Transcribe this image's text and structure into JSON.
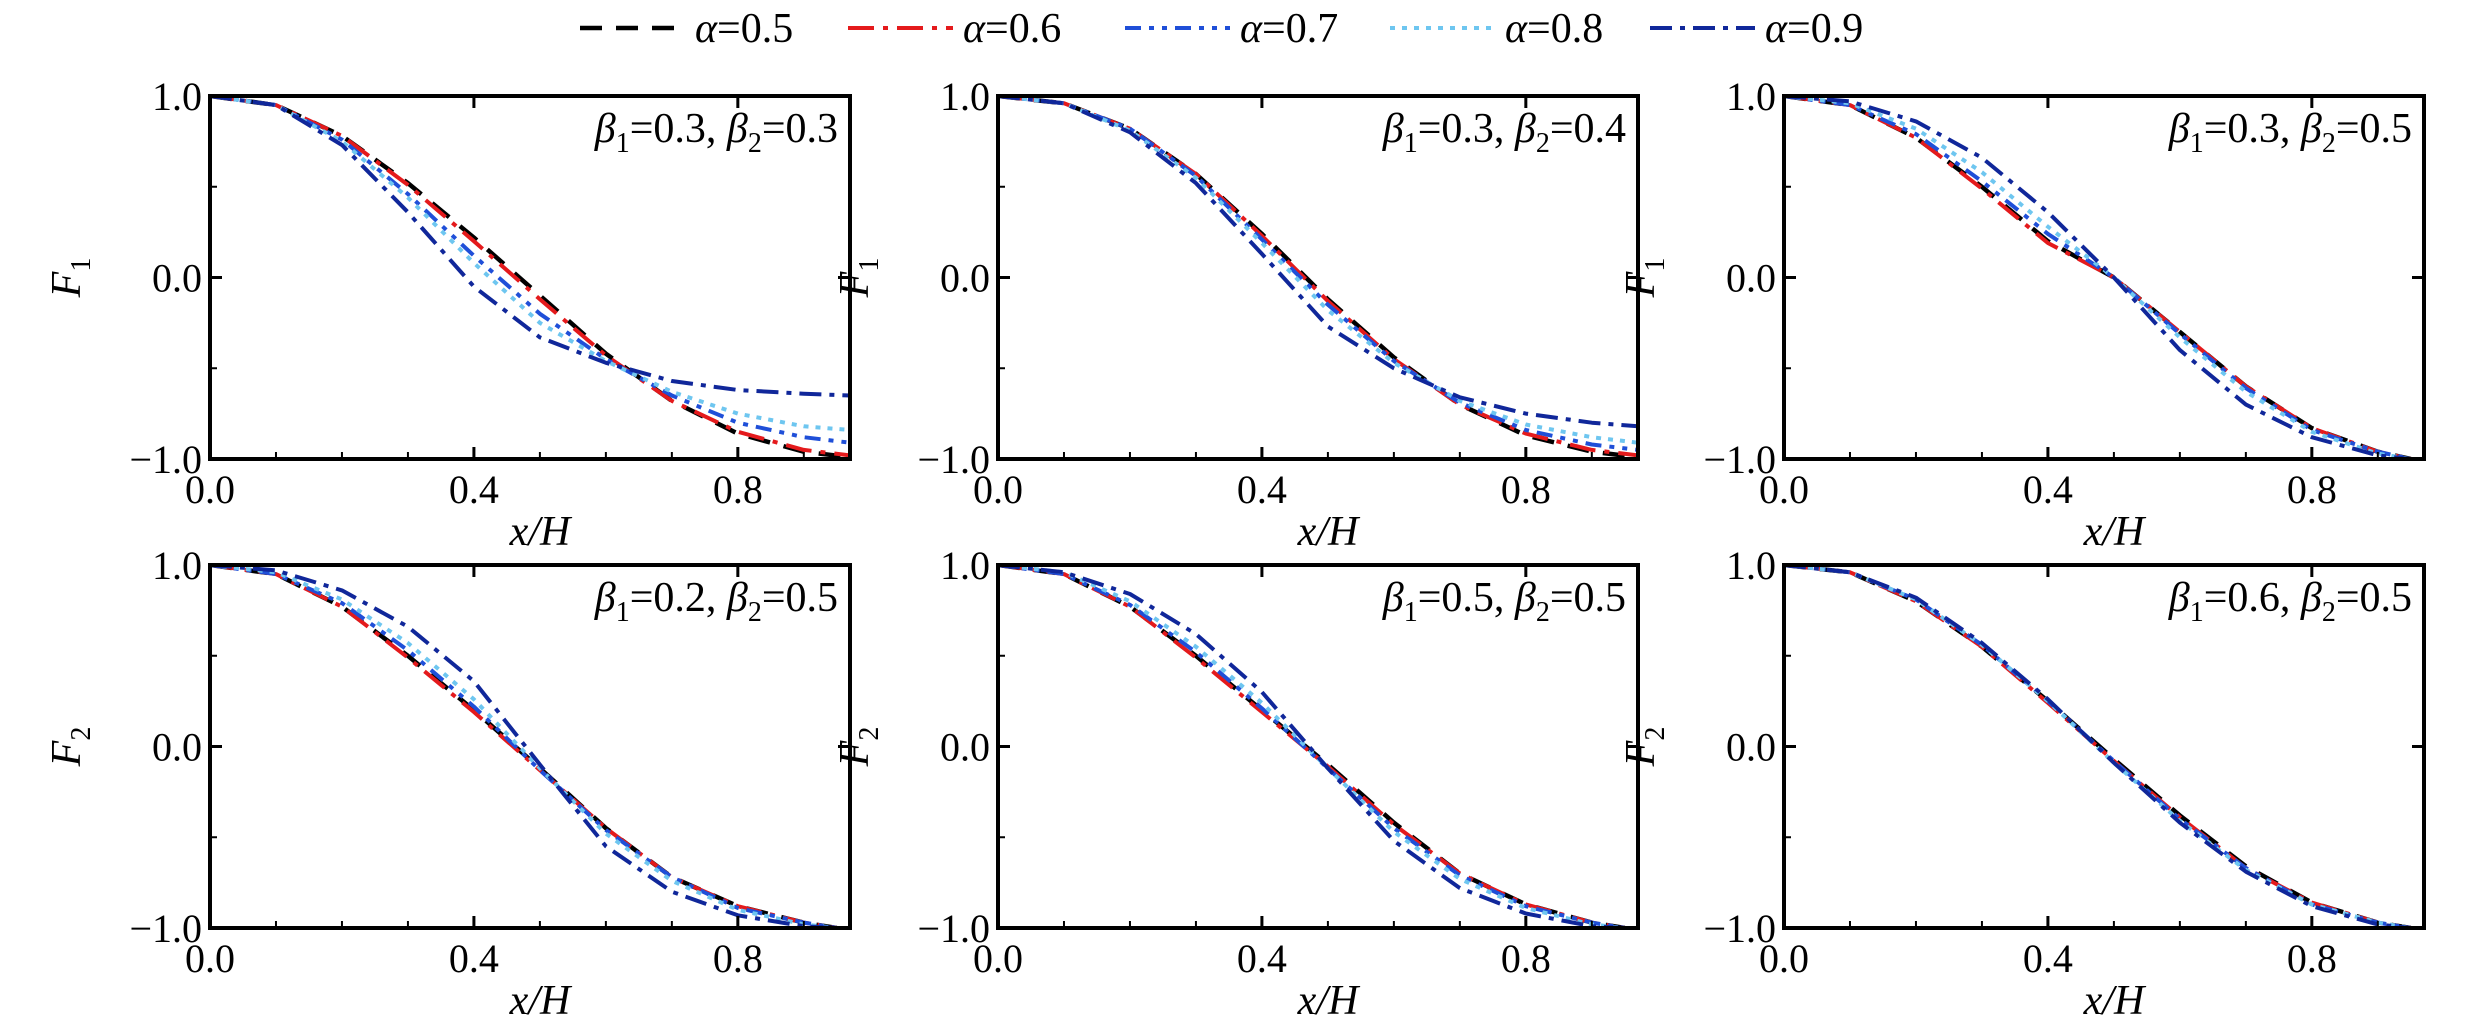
{
  "figure": {
    "legend_alpha_symbol": "α"
  },
  "styles": {
    "0.5": {
      "color": "#000000",
      "dash": "22,14",
      "width": 4.5
    },
    "0.6": {
      "color": "#e41a1c",
      "dash": "26,9,5,9",
      "width": 4
    },
    "0.7": {
      "color": "#1f4fd8",
      "dash": "16,8,5,8,5,8",
      "width": 4
    },
    "0.8": {
      "color": "#6ec6f0",
      "dash": "5,7",
      "width": 4
    },
    "0.9": {
      "color": "#10279a",
      "dash": "22,8,5,8",
      "width": 4
    }
  },
  "chart_data": [
    {
      "type": "line",
      "ylabel": "F",
      "ylabel_sub": "1",
      "xlabel": "x/H",
      "annotation": {
        "b1": "0.3",
        "b2": "0.3"
      },
      "xlim": [
        0,
        0.97
      ],
      "ylim": [
        -1.0,
        1.0
      ],
      "xticks": [
        0.0,
        0.4,
        0.8
      ],
      "xtick_labels": [
        "0.0",
        "0.4",
        "0.8"
      ],
      "yticks": [
        1.0,
        0.0,
        -1.0
      ],
      "ytick_labels": [
        "1.0",
        "0.0",
        "−1.0"
      ],
      "x": [
        0.0,
        0.1,
        0.2,
        0.3,
        0.4,
        0.5,
        0.6,
        0.7,
        0.8,
        0.9,
        0.97
      ],
      "series": [
        {
          "name": "α=0.5",
          "alpha": "0.5",
          "values": [
            1.0,
            0.95,
            0.78,
            0.52,
            0.22,
            -0.1,
            -0.42,
            -0.68,
            -0.86,
            -0.96,
            -0.99
          ]
        },
        {
          "name": "α=0.6",
          "alpha": "0.6",
          "values": [
            1.0,
            0.95,
            0.78,
            0.51,
            0.2,
            -0.12,
            -0.43,
            -0.68,
            -0.85,
            -0.95,
            -0.98
          ]
        },
        {
          "name": "α=0.7",
          "alpha": "0.7",
          "values": [
            1.0,
            0.95,
            0.76,
            0.46,
            0.12,
            -0.2,
            -0.45,
            -0.65,
            -0.8,
            -0.88,
            -0.91
          ]
        },
        {
          "name": "α=0.8",
          "alpha": "0.8",
          "values": [
            1.0,
            0.95,
            0.75,
            0.44,
            0.08,
            -0.25,
            -0.46,
            -0.63,
            -0.75,
            -0.82,
            -0.84
          ]
        },
        {
          "name": "α=0.9",
          "alpha": "0.9",
          "values": [
            1.0,
            0.95,
            0.73,
            0.36,
            -0.05,
            -0.33,
            -0.47,
            -0.57,
            -0.62,
            -0.64,
            -0.65
          ]
        }
      ]
    },
    {
      "type": "line",
      "ylabel": "F",
      "ylabel_sub": "1",
      "xlabel": "x/H",
      "annotation": {
        "b1": "0.3",
        "b2": "0.4"
      },
      "xlim": [
        0,
        0.97
      ],
      "ylim": [
        -1.0,
        1.0
      ],
      "xticks": [
        0.0,
        0.4,
        0.8
      ],
      "xtick_labels": [
        "0.0",
        "0.4",
        "0.8"
      ],
      "yticks": [
        1.0,
        0.0,
        -1.0
      ],
      "ytick_labels": [
        "1.0",
        "0.0",
        "−1.0"
      ],
      "x": [
        0.0,
        0.1,
        0.2,
        0.3,
        0.4,
        0.5,
        0.6,
        0.7,
        0.8,
        0.9,
        0.97
      ],
      "series": [
        {
          "name": "α=0.5",
          "alpha": "0.5",
          "values": [
            1.0,
            0.96,
            0.82,
            0.57,
            0.24,
            -0.12,
            -0.44,
            -0.7,
            -0.87,
            -0.96,
            -0.99
          ]
        },
        {
          "name": "α=0.6",
          "alpha": "0.6",
          "values": [
            1.0,
            0.96,
            0.82,
            0.57,
            0.23,
            -0.13,
            -0.45,
            -0.7,
            -0.86,
            -0.95,
            -0.98
          ]
        },
        {
          "name": "α=0.7",
          "alpha": "0.7",
          "values": [
            1.0,
            0.96,
            0.82,
            0.56,
            0.21,
            -0.15,
            -0.46,
            -0.69,
            -0.84,
            -0.92,
            -0.95
          ]
        },
        {
          "name": "α=0.8",
          "alpha": "0.8",
          "values": [
            1.0,
            0.96,
            0.81,
            0.55,
            0.19,
            -0.18,
            -0.47,
            -0.68,
            -0.81,
            -0.88,
            -0.91
          ]
        },
        {
          "name": "α=0.9",
          "alpha": "0.9",
          "values": [
            1.0,
            0.96,
            0.8,
            0.52,
            0.13,
            -0.27,
            -0.5,
            -0.66,
            -0.75,
            -0.8,
            -0.82
          ]
        }
      ]
    },
    {
      "type": "line",
      "ylabel": "F",
      "ylabel_sub": "1",
      "xlabel": "x/H",
      "annotation": {
        "b1": "0.3",
        "b2": "0.5"
      },
      "xlim": [
        0,
        0.97
      ],
      "ylim": [
        -1.0,
        1.0
      ],
      "xticks": [
        0.0,
        0.4,
        0.8
      ],
      "xtick_labels": [
        "0.0",
        "0.4",
        "0.8"
      ],
      "yticks": [
        1.0,
        0.0,
        -1.0
      ],
      "ytick_labels": [
        "1.0",
        "0.0",
        "−1.0"
      ],
      "x": [
        0.0,
        0.1,
        0.2,
        0.3,
        0.4,
        0.5,
        0.6,
        0.7,
        0.8,
        0.9,
        0.95
      ],
      "series": [
        {
          "name": "α=0.5",
          "alpha": "0.5",
          "values": [
            1.0,
            0.95,
            0.77,
            0.5,
            0.2,
            0.0,
            -0.3,
            -0.6,
            -0.83,
            -0.96,
            -1.0
          ]
        },
        {
          "name": "α=0.6",
          "alpha": "0.6",
          "values": [
            1.0,
            0.95,
            0.77,
            0.49,
            0.19,
            0.0,
            -0.3,
            -0.6,
            -0.83,
            -0.96,
            -1.0
          ]
        },
        {
          "name": "α=0.7",
          "alpha": "0.7",
          "values": [
            1.0,
            0.95,
            0.79,
            0.53,
            0.24,
            0.0,
            -0.31,
            -0.61,
            -0.84,
            -0.96,
            -1.0
          ]
        },
        {
          "name": "α=0.8",
          "alpha": "0.8",
          "values": [
            1.0,
            0.96,
            0.82,
            0.58,
            0.28,
            0.0,
            -0.33,
            -0.63,
            -0.85,
            -0.97,
            -1.0
          ]
        },
        {
          "name": "α=0.9",
          "alpha": "0.9",
          "values": [
            1.0,
            0.97,
            0.86,
            0.66,
            0.36,
            0.0,
            -0.4,
            -0.7,
            -0.88,
            -0.98,
            -1.0
          ]
        }
      ]
    },
    {
      "type": "line",
      "ylabel": "F",
      "ylabel_sub": "2",
      "xlabel": "x/H",
      "annotation": {
        "b1": "0.2",
        "b2": "0.5"
      },
      "xlim": [
        0,
        0.97
      ],
      "ylim": [
        -1.0,
        1.0
      ],
      "xticks": [
        0.0,
        0.4,
        0.8
      ],
      "xtick_labels": [
        "0.0",
        "0.4",
        "0.8"
      ],
      "yticks": [
        1.0,
        0.0,
        -1.0
      ],
      "ytick_labels": [
        "1.0",
        "0.0",
        "−1.0"
      ],
      "x": [
        0.0,
        0.1,
        0.2,
        0.3,
        0.4,
        0.5,
        0.6,
        0.7,
        0.8,
        0.9,
        0.95
      ],
      "series": [
        {
          "name": "α=0.5",
          "alpha": "0.5",
          "values": [
            1.0,
            0.95,
            0.77,
            0.5,
            0.2,
            -0.12,
            -0.45,
            -0.72,
            -0.88,
            -0.97,
            -1.0
          ]
        },
        {
          "name": "α=0.6",
          "alpha": "0.6",
          "values": [
            1.0,
            0.95,
            0.77,
            0.49,
            0.19,
            -0.13,
            -0.45,
            -0.72,
            -0.88,
            -0.97,
            -1.0
          ]
        },
        {
          "name": "α=0.7",
          "alpha": "0.7",
          "values": [
            1.0,
            0.95,
            0.79,
            0.53,
            0.22,
            -0.13,
            -0.46,
            -0.72,
            -0.89,
            -0.97,
            -1.0
          ]
        },
        {
          "name": "α=0.8",
          "alpha": "0.8",
          "values": [
            1.0,
            0.96,
            0.81,
            0.57,
            0.26,
            -0.12,
            -0.48,
            -0.74,
            -0.9,
            -0.98,
            -1.0
          ]
        },
        {
          "name": "α=0.9",
          "alpha": "0.9",
          "values": [
            1.0,
            0.97,
            0.86,
            0.66,
            0.36,
            -0.1,
            -0.55,
            -0.8,
            -0.93,
            -0.99,
            -1.0
          ]
        }
      ]
    },
    {
      "type": "line",
      "ylabel": "F",
      "ylabel_sub": "2",
      "xlabel": "x/H",
      "annotation": {
        "b1": "0.5",
        "b2": "0.5"
      },
      "xlim": [
        0,
        0.97
      ],
      "ylim": [
        -1.0,
        1.0
      ],
      "xticks": [
        0.0,
        0.4,
        0.8
      ],
      "xtick_labels": [
        "0.0",
        "0.4",
        "0.8"
      ],
      "yticks": [
        1.0,
        0.0,
        -1.0
      ],
      "ytick_labels": [
        "1.0",
        "0.0",
        "−1.0"
      ],
      "x": [
        0.0,
        0.1,
        0.2,
        0.3,
        0.4,
        0.5,
        0.6,
        0.7,
        0.8,
        0.9,
        0.95
      ],
      "series": [
        {
          "name": "α=0.5",
          "alpha": "0.5",
          "values": [
            1.0,
            0.95,
            0.77,
            0.5,
            0.2,
            -0.1,
            -0.42,
            -0.7,
            -0.87,
            -0.97,
            -1.0
          ]
        },
        {
          "name": "α=0.6",
          "alpha": "0.6",
          "values": [
            1.0,
            0.95,
            0.77,
            0.49,
            0.19,
            -0.11,
            -0.43,
            -0.7,
            -0.87,
            -0.97,
            -1.0
          ]
        },
        {
          "name": "α=0.7",
          "alpha": "0.7",
          "values": [
            1.0,
            0.95,
            0.78,
            0.52,
            0.21,
            -0.12,
            -0.45,
            -0.71,
            -0.88,
            -0.97,
            -1.0
          ]
        },
        {
          "name": "α=0.8",
          "alpha": "0.8",
          "values": [
            1.0,
            0.96,
            0.8,
            0.55,
            0.24,
            -0.12,
            -0.47,
            -0.73,
            -0.89,
            -0.98,
            -1.0
          ]
        },
        {
          "name": "α=0.9",
          "alpha": "0.9",
          "values": [
            1.0,
            0.96,
            0.84,
            0.62,
            0.3,
            -0.12,
            -0.52,
            -0.78,
            -0.92,
            -0.99,
            -1.0
          ]
        }
      ]
    },
    {
      "type": "line",
      "ylabel": "F",
      "ylabel_sub": "2",
      "xlabel": "x/H",
      "annotation": {
        "b1": "0.6",
        "b2": "0.5"
      },
      "xlim": [
        0,
        0.97
      ],
      "ylim": [
        -1.0,
        1.0
      ],
      "xticks": [
        0.0,
        0.4,
        0.8
      ],
      "xtick_labels": [
        "0.0",
        "0.4",
        "0.8"
      ],
      "yticks": [
        1.0,
        0.0,
        -1.0
      ],
      "ytick_labels": [
        "1.0",
        "0.0",
        "−1.0"
      ],
      "x": [
        0.0,
        0.1,
        0.2,
        0.3,
        0.4,
        0.5,
        0.6,
        0.7,
        0.8,
        0.9,
        0.95
      ],
      "series": [
        {
          "name": "α=0.5",
          "alpha": "0.5",
          "values": [
            1.0,
            0.96,
            0.8,
            0.55,
            0.25,
            -0.07,
            -0.38,
            -0.66,
            -0.86,
            -0.97,
            -1.0
          ]
        },
        {
          "name": "α=0.6",
          "alpha": "0.6",
          "values": [
            1.0,
            0.96,
            0.8,
            0.55,
            0.24,
            -0.08,
            -0.39,
            -0.67,
            -0.86,
            -0.97,
            -1.0
          ]
        },
        {
          "name": "α=0.7",
          "alpha": "0.7",
          "values": [
            1.0,
            0.96,
            0.81,
            0.56,
            0.25,
            -0.08,
            -0.4,
            -0.67,
            -0.87,
            -0.97,
            -1.0
          ]
        },
        {
          "name": "α=0.8",
          "alpha": "0.8",
          "values": [
            1.0,
            0.96,
            0.81,
            0.56,
            0.25,
            -0.09,
            -0.41,
            -0.68,
            -0.87,
            -0.97,
            -1.0
          ]
        },
        {
          "name": "α=0.9",
          "alpha": "0.9",
          "values": [
            1.0,
            0.96,
            0.82,
            0.57,
            0.26,
            -0.09,
            -0.42,
            -0.69,
            -0.88,
            -0.98,
            -1.0
          ]
        }
      ]
    }
  ]
}
